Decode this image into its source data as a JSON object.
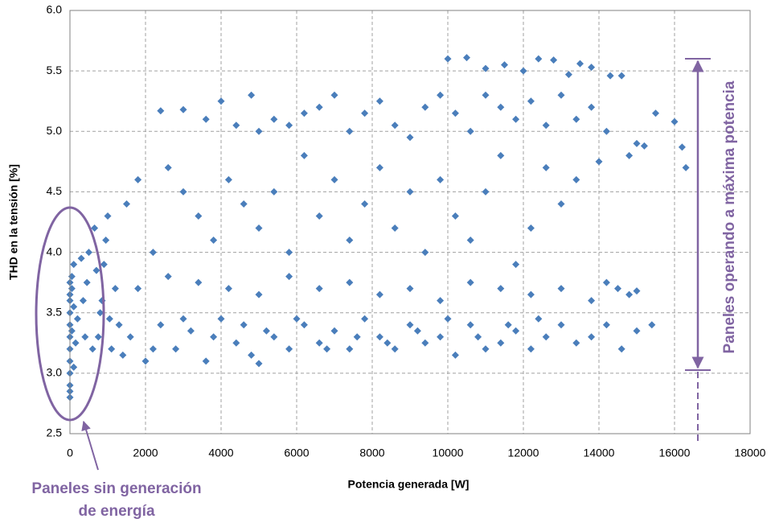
{
  "chart_data": {
    "type": "scatter",
    "x_label": "Potencia generada [W]",
    "y_label": "THD en la tensión [%]",
    "annotations": [
      "Paneles sin generación",
      "de energía",
      "Paneles operando a máxima potencia"
    ],
    "color": "#4a7ebb",
    "grid": true,
    "xlim": [
      0,
      18000
    ],
    "xticks": [
      0,
      2000,
      4000,
      6000,
      8000,
      10000,
      12000,
      14000,
      16000,
      18000
    ],
    "ylim": [
      2.5,
      6.0
    ],
    "yticks": [
      2.5,
      {
        "value": 3,
        "label": "3.0"
      },
      3.5,
      {
        "value": 4,
        "label": "4.0"
      },
      4.5,
      {
        "value": 5,
        "label": "5.0"
      },
      5.5,
      {
        "value": 6,
        "label": "6.0"
      }
    ],
    "x": [
      0,
      0,
      0,
      0,
      0,
      0,
      0,
      0,
      0,
      0,
      50,
      50,
      100,
      100,
      150,
      200,
      0,
      0,
      100,
      50,
      300,
      400,
      500,
      600,
      700,
      800,
      900,
      1000,
      1100,
      1200,
      1300,
      1400,
      1500,
      350,
      450,
      650,
      750,
      850,
      950,
      1050,
      1600,
      2000,
      2400,
      2800,
      3200,
      3600,
      4000,
      4400,
      4800,
      5000,
      5400,
      5800,
      6200,
      6600,
      7000,
      7400,
      7800,
      8200,
      8600,
      9000,
      9400,
      9800,
      10200,
      10600,
      11000,
      11400,
      11800,
      12200,
      12600,
      13000,
      13400,
      13800,
      14200,
      14600,
      15000,
      15400,
      2200,
      3000,
      3800,
      4600,
      5200,
      6000,
      6800,
      7600,
      8400,
      9200,
      10000,
      10800,
      11600,
      12400,
      1800,
      2600,
      3400,
      4200,
      5000,
      5800,
      6600,
      7400,
      8200,
      9000,
      9800,
      10600,
      11400,
      12200,
      13000,
      13800,
      14200,
      14500,
      14800,
      15000,
      2400,
      3000,
      3600,
      4000,
      4400,
      4800,
      5000,
      5400,
      5800,
      6200,
      6600,
      7000,
      7400,
      7800,
      8200,
      8600,
      9000,
      9400,
      9800,
      10200,
      10600,
      11000,
      11400,
      11800,
      12200,
      12600,
      13000,
      13400,
      13800,
      14200,
      10000,
      10500,
      11000,
      11500,
      12000,
      12400,
      12800,
      13200,
      13500,
      13800,
      14300,
      14600,
      15000,
      15500,
      16000,
      16200,
      16300,
      15200,
      14800,
      14000,
      1800,
      2200,
      2600,
      3000,
      3400,
      3800,
      4200,
      4600,
      5000,
      5400,
      5800,
      6200,
      6600,
      7000,
      7400,
      7800,
      8200,
      8600,
      9000,
      9400,
      9800,
      10200,
      10600,
      11000,
      11400,
      11800,
      12200,
      12600,
      13000,
      13400
    ],
    "values": [
      2.8,
      2.85,
      2.9,
      3.0,
      3.1,
      3.2,
      3.3,
      3.4,
      3.5,
      3.6,
      3.7,
      3.8,
      3.9,
      3.05,
      3.25,
      3.45,
      3.65,
      3.75,
      3.55,
      3.35,
      3.95,
      3.3,
      4.0,
      3.2,
      3.85,
      3.5,
      3.9,
      4.3,
      3.2,
      3.7,
      3.4,
      3.15,
      4.4,
      3.6,
      3.75,
      4.2,
      3.3,
      3.6,
      4.1,
      3.45,
      3.3,
      3.1,
      3.4,
      3.2,
      3.35,
      3.1,
      3.45,
      3.25,
      3.15,
      3.08,
      3.3,
      3.2,
      3.4,
      3.25,
      3.35,
      3.2,
      3.45,
      3.3,
      3.2,
      3.4,
      3.25,
      3.3,
      3.15,
      3.4,
      3.2,
      3.25,
      3.35,
      3.2,
      3.3,
      3.4,
      3.25,
      3.3,
      3.4,
      3.2,
      3.35,
      3.4,
      3.2,
      3.45,
      3.3,
      3.4,
      3.35,
      3.45,
      3.2,
      3.3,
      3.25,
      3.35,
      3.45,
      3.3,
      3.4,
      3.45,
      3.7,
      3.8,
      3.75,
      3.7,
      3.65,
      3.8,
      3.7,
      3.75,
      3.65,
      3.7,
      3.6,
      3.75,
      3.7,
      3.65,
      3.7,
      3.6,
      3.75,
      3.7,
      3.65,
      3.68,
      5.17,
      5.18,
      5.1,
      5.25,
      5.05,
      5.3,
      5.0,
      5.1,
      5.05,
      5.15,
      5.2,
      5.3,
      5.0,
      5.15,
      5.25,
      5.05,
      4.95,
      5.2,
      5.3,
      5.15,
      5.0,
      5.3,
      5.2,
      5.1,
      5.25,
      5.05,
      5.3,
      5.1,
      5.2,
      5.0,
      5.6,
      5.61,
      5.52,
      5.55,
      5.5,
      5.6,
      5.59,
      5.47,
      5.56,
      5.53,
      5.46,
      5.46,
      4.9,
      5.15,
      5.08,
      4.87,
      4.7,
      4.88,
      4.8,
      4.75,
      4.6,
      4.0,
      4.7,
      4.5,
      4.3,
      4.1,
      4.6,
      4.4,
      4.2,
      4.5,
      4.0,
      4.8,
      4.3,
      4.6,
      4.1,
      4.4,
      4.7,
      4.2,
      4.5,
      4.0,
      4.6,
      4.3,
      4.1,
      4.5,
      4.8,
      3.9,
      4.2,
      4.7,
      4.4,
      4.6
    ]
  }
}
